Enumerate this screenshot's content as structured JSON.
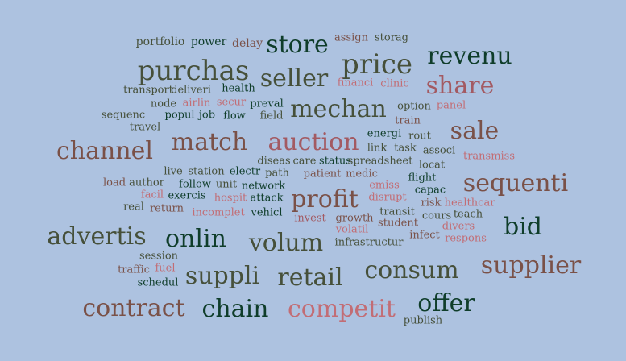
{
  "palette": {
    "background": "#adc2e0",
    "dark_green": "#0f3d2a",
    "olive": "#46503a",
    "brown": "#7a5148",
    "rose": "#a35a62",
    "pink": "#c26d75"
  },
  "words": [
    {
      "text": "portfolio",
      "weight": 1,
      "color": "#46503a"
    },
    {
      "text": "power",
      "weight": 1,
      "color": "#0f3d2a"
    },
    {
      "text": "delay",
      "weight": 1,
      "color": "#7a5148"
    },
    {
      "text": "store",
      "weight": 4,
      "color": "#0f3d2a"
    },
    {
      "text": "assign",
      "weight": 1,
      "color": "#7a5148"
    },
    {
      "text": "storag",
      "weight": 1,
      "color": "#46503a"
    },
    {
      "text": "revenu",
      "weight": 4,
      "color": "#0f3d2a"
    },
    {
      "text": "purchas",
      "weight": 5,
      "color": "#46503a"
    },
    {
      "text": "price",
      "weight": 5,
      "color": "#46503a"
    },
    {
      "text": "seller",
      "weight": 4,
      "color": "#46503a"
    },
    {
      "text": "financi",
      "weight": 1,
      "color": "#c26d75"
    },
    {
      "text": "clinic",
      "weight": 1,
      "color": "#c26d75"
    },
    {
      "text": "share",
      "weight": 5,
      "color": "#a35a62"
    },
    {
      "text": "transport",
      "weight": 1,
      "color": "#46503a"
    },
    {
      "text": "deliveri",
      "weight": 1,
      "color": "#46503a"
    },
    {
      "text": "health",
      "weight": 1,
      "color": "#0f3d2a"
    },
    {
      "text": "node",
      "weight": 1,
      "color": "#46503a"
    },
    {
      "text": "airlin",
      "weight": 1,
      "color": "#c26d75"
    },
    {
      "text": "secur",
      "weight": 1,
      "color": "#c26d75"
    },
    {
      "text": "preval",
      "weight": 1,
      "color": "#0f3d2a"
    },
    {
      "text": "mechan",
      "weight": 5,
      "color": "#46503a"
    },
    {
      "text": "option",
      "weight": 1,
      "color": "#46503a"
    },
    {
      "text": "panel",
      "weight": 1,
      "color": "#c26d75"
    },
    {
      "text": "sequenc",
      "weight": 1,
      "color": "#46503a"
    },
    {
      "text": "popul",
      "weight": 1,
      "color": "#0f3d2a"
    },
    {
      "text": "job",
      "weight": 1,
      "color": "#0f3d2a"
    },
    {
      "text": "flow",
      "weight": 1,
      "color": "#0f3d2a"
    },
    {
      "text": "field",
      "weight": 1,
      "color": "#46503a"
    },
    {
      "text": "train",
      "weight": 1,
      "color": "#7a5148"
    },
    {
      "text": "travel",
      "weight": 1,
      "color": "#46503a"
    },
    {
      "text": "energi",
      "weight": 1,
      "color": "#0f3d2a"
    },
    {
      "text": "rout",
      "weight": 1,
      "color": "#46503a"
    },
    {
      "text": "sale",
      "weight": 5,
      "color": "#7a5148"
    },
    {
      "text": "channel",
      "weight": 5,
      "color": "#7a5148"
    },
    {
      "text": "match",
      "weight": 5,
      "color": "#7a5148"
    },
    {
      "text": "auction",
      "weight": 5,
      "color": "#a35a62"
    },
    {
      "text": "link",
      "weight": 1,
      "color": "#46503a"
    },
    {
      "text": "task",
      "weight": 1,
      "color": "#46503a"
    },
    {
      "text": "associ",
      "weight": 1,
      "color": "#46503a"
    },
    {
      "text": "transmiss",
      "weight": 1,
      "color": "#c26d75"
    },
    {
      "text": "diseas",
      "weight": 1,
      "color": "#46503a"
    },
    {
      "text": "care",
      "weight": 1,
      "color": "#46503a"
    },
    {
      "text": "status",
      "weight": 1,
      "color": "#0f3d2a"
    },
    {
      "text": "spreadsheet",
      "weight": 1,
      "color": "#46503a"
    },
    {
      "text": "locat",
      "weight": 1,
      "color": "#46503a"
    },
    {
      "text": "live",
      "weight": 1,
      "color": "#46503a"
    },
    {
      "text": "station",
      "weight": 1,
      "color": "#46503a"
    },
    {
      "text": "electr",
      "weight": 1,
      "color": "#0f3d2a"
    },
    {
      "text": "path",
      "weight": 1,
      "color": "#46503a"
    },
    {
      "text": "patient",
      "weight": 1,
      "color": "#7a5148"
    },
    {
      "text": "medic",
      "weight": 1,
      "color": "#7a5148"
    },
    {
      "text": "flight",
      "weight": 1,
      "color": "#0f3d2a"
    },
    {
      "text": "sequenti",
      "weight": 5,
      "color": "#7a5148"
    },
    {
      "text": "load",
      "weight": 1,
      "color": "#7a5148"
    },
    {
      "text": "author",
      "weight": 1,
      "color": "#46503a"
    },
    {
      "text": "follow",
      "weight": 1,
      "color": "#0f3d2a"
    },
    {
      "text": "unit",
      "weight": 1,
      "color": "#46503a"
    },
    {
      "text": "network",
      "weight": 1,
      "color": "#0f3d2a"
    },
    {
      "text": "emiss",
      "weight": 1,
      "color": "#c26d75"
    },
    {
      "text": "capac",
      "weight": 1,
      "color": "#0f3d2a"
    },
    {
      "text": "facil",
      "weight": 1,
      "color": "#c26d75"
    },
    {
      "text": "exercis",
      "weight": 1,
      "color": "#0f3d2a"
    },
    {
      "text": "hospit",
      "weight": 1,
      "color": "#c26d75"
    },
    {
      "text": "attack",
      "weight": 1,
      "color": "#0f3d2a"
    },
    {
      "text": "profit",
      "weight": 5,
      "color": "#7a5148"
    },
    {
      "text": "disrupt",
      "weight": 1,
      "color": "#c26d75"
    },
    {
      "text": "risk",
      "weight": 1,
      "color": "#7a5148"
    },
    {
      "text": "healthcar",
      "weight": 1,
      "color": "#c26d75"
    },
    {
      "text": "real",
      "weight": 1,
      "color": "#46503a"
    },
    {
      "text": "return",
      "weight": 1,
      "color": "#7a5148"
    },
    {
      "text": "incomplet",
      "weight": 1,
      "color": "#c26d75"
    },
    {
      "text": "vehicl",
      "weight": 1,
      "color": "#0f3d2a"
    },
    {
      "text": "transit",
      "weight": 1,
      "color": "#46503a"
    },
    {
      "text": "cours",
      "weight": 1,
      "color": "#46503a"
    },
    {
      "text": "teach",
      "weight": 1,
      "color": "#46503a"
    },
    {
      "text": "invest",
      "weight": 1,
      "color": "#a35a62"
    },
    {
      "text": "growth",
      "weight": 1,
      "color": "#7a5148"
    },
    {
      "text": "student",
      "weight": 1,
      "color": "#7a5148"
    },
    {
      "text": "divers",
      "weight": 1,
      "color": "#c26d75"
    },
    {
      "text": "bid",
      "weight": 5,
      "color": "#0f3d2a"
    },
    {
      "text": "advertis",
      "weight": 5,
      "color": "#46503a"
    },
    {
      "text": "onlin",
      "weight": 5,
      "color": "#0f3d2a"
    },
    {
      "text": "volum",
      "weight": 5,
      "color": "#46503a"
    },
    {
      "text": "volatil",
      "weight": 1,
      "color": "#c26d75"
    },
    {
      "text": "infect",
      "weight": 1,
      "color": "#7a5148"
    },
    {
      "text": "respons",
      "weight": 1,
      "color": "#c26d75"
    },
    {
      "text": "infrastructur",
      "weight": 1,
      "color": "#46503a"
    },
    {
      "text": "session",
      "weight": 1,
      "color": "#46503a"
    },
    {
      "text": "supplier",
      "weight": 5,
      "color": "#7a5148"
    },
    {
      "text": "traffic",
      "weight": 1,
      "color": "#7a5148"
    },
    {
      "text": "fuel",
      "weight": 1,
      "color": "#c26d75"
    },
    {
      "text": "suppli",
      "weight": 5,
      "color": "#46503a"
    },
    {
      "text": "retail",
      "weight": 5,
      "color": "#46503a"
    },
    {
      "text": "consum",
      "weight": 5,
      "color": "#46503a"
    },
    {
      "text": "schedul",
      "weight": 1,
      "color": "#0f3d2a"
    },
    {
      "text": "contract",
      "weight": 5,
      "color": "#7a5148"
    },
    {
      "text": "chain",
      "weight": 5,
      "color": "#0f3d2a"
    },
    {
      "text": "competit",
      "weight": 5,
      "color": "#c26d75"
    },
    {
      "text": "offer",
      "weight": 5,
      "color": "#0f3d2a"
    },
    {
      "text": "publish",
      "weight": 1,
      "color": "#46503a"
    }
  ]
}
